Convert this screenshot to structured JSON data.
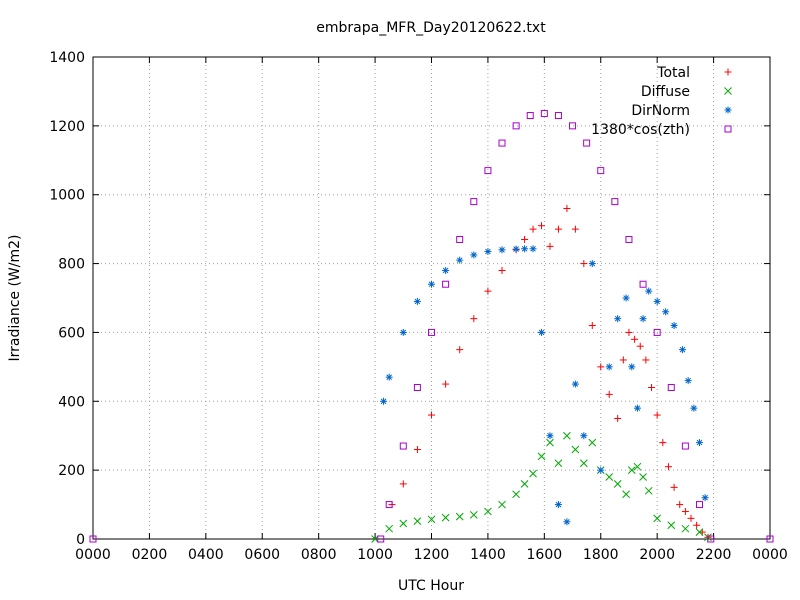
{
  "chart_data": {
    "type": "scatter",
    "title": "embrapa_MFR_Day20120622.txt",
    "xlabel": "UTC Hour",
    "ylabel": "Irradiance (W/m2)",
    "xlim": [
      0,
      24
    ],
    "ylim": [
      0,
      1400
    ],
    "x_tick_labels": [
      "0000",
      "0200",
      "0400",
      "0600",
      "0800",
      "1000",
      "1200",
      "1400",
      "1600",
      "1800",
      "2000",
      "2200",
      "0000"
    ],
    "y_tick_labels": [
      "0",
      "200",
      "400",
      "600",
      "800",
      "1000",
      "1200",
      "1400"
    ],
    "grid": true,
    "legend_position": "top-right",
    "series": [
      {
        "name": "Total",
        "marker": "+",
        "color": "#ff0000",
        "x": [
          10.6,
          11.0,
          11.5,
          12.0,
          12.5,
          13.0,
          13.5,
          14.0,
          14.5,
          15.0,
          15.3,
          15.6,
          15.9,
          16.2,
          16.5,
          16.8,
          17.1,
          17.4,
          17.7,
          18.0,
          18.3,
          18.6,
          18.8,
          19.0,
          19.2,
          19.4,
          19.6,
          19.8,
          20.0,
          20.2,
          20.4,
          20.6,
          20.8,
          21.0,
          21.2,
          21.4,
          21.6,
          21.8
        ],
        "y": [
          100,
          160,
          260,
          360,
          450,
          550,
          640,
          720,
          780,
          840,
          870,
          900,
          910,
          850,
          900,
          960,
          900,
          800,
          620,
          500,
          420,
          350,
          520,
          600,
          580,
          560,
          520,
          440,
          360,
          280,
          210,
          150,
          100,
          80,
          60,
          40,
          20,
          5
        ]
      },
      {
        "name": "Diffuse",
        "marker": "x",
        "color": "#00aa00",
        "x": [
          10.0,
          10.5,
          11.0,
          11.5,
          12.0,
          12.5,
          13.0,
          13.5,
          14.0,
          14.5,
          15.0,
          15.3,
          15.6,
          15.9,
          16.2,
          16.5,
          16.8,
          17.1,
          17.4,
          17.7,
          18.0,
          18.3,
          18.6,
          18.9,
          19.1,
          19.3,
          19.5,
          19.7,
          20.0,
          20.5,
          21.0,
          21.5,
          21.8
        ],
        "y": [
          0,
          30,
          45,
          52,
          57,
          62,
          65,
          70,
          80,
          100,
          130,
          160,
          190,
          240,
          280,
          220,
          300,
          260,
          220,
          280,
          200,
          180,
          160,
          130,
          200,
          210,
          180,
          140,
          60,
          40,
          30,
          20,
          5
        ]
      },
      {
        "name": "DirNorm",
        "marker": "*",
        "color": "#0066cc",
        "x": [
          10.3,
          10.5,
          11.0,
          11.5,
          12.0,
          12.5,
          13.0,
          13.5,
          14.0,
          14.5,
          15.0,
          15.3,
          15.6,
          15.9,
          16.2,
          16.5,
          16.8,
          17.1,
          17.4,
          17.7,
          18.0,
          18.3,
          18.6,
          18.9,
          19.1,
          19.3,
          19.5,
          19.7,
          20.0,
          20.3,
          20.6,
          20.9,
          21.1,
          21.3,
          21.5,
          21.7
        ],
        "y": [
          400,
          470,
          600,
          690,
          740,
          780,
          810,
          825,
          835,
          840,
          842,
          843,
          843,
          600,
          300,
          100,
          50,
          450,
          300,
          800,
          200,
          500,
          640,
          700,
          500,
          380,
          640,
          720,
          690,
          660,
          620,
          550,
          460,
          380,
          280,
          120
        ]
      },
      {
        "name": "1380*cos(zth)",
        "marker": "square",
        "color": "#aa00cc",
        "x": [
          0,
          10.2,
          10.5,
          11.0,
          11.5,
          12.0,
          12.5,
          13.0,
          13.5,
          14.0,
          14.5,
          15.0,
          15.5,
          16.0,
          16.5,
          17.0,
          17.5,
          18.0,
          18.5,
          19.0,
          19.5,
          20.0,
          20.5,
          21.0,
          21.5,
          21.9,
          24
        ],
        "y": [
          0,
          0,
          100,
          270,
          440,
          600,
          740,
          870,
          980,
          1070,
          1150,
          1200,
          1230,
          1236,
          1230,
          1200,
          1150,
          1070,
          980,
          870,
          740,
          600,
          440,
          270,
          100,
          0,
          0
        ]
      }
    ]
  }
}
